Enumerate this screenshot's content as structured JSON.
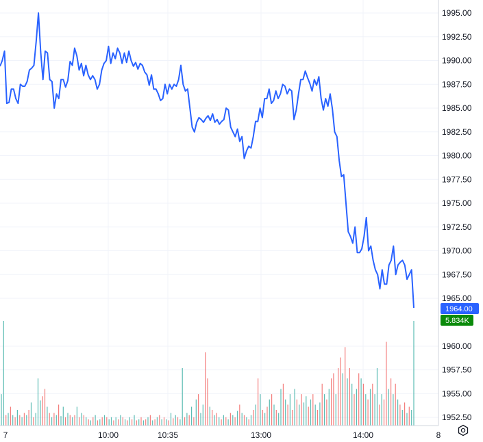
{
  "chart_data": {
    "type": "line",
    "title": "",
    "xlabel": "",
    "ylabel": "",
    "ylim": [
      1952.5,
      1995.0
    ],
    "grid": true,
    "y_ticks": [
      "1995.00",
      "1992.50",
      "1990.00",
      "1987.50",
      "1985.00",
      "1982.50",
      "1980.00",
      "1977.50",
      "1975.00",
      "1972.50",
      "1970.00",
      "1967.50",
      "1965.00",
      "1960.00",
      "1957.50",
      "1955.00",
      "1952.50"
    ],
    "x_ticks": [
      "7",
      "10:00",
      "10:35",
      "13:00",
      "14:00",
      "8"
    ],
    "last_price_label": "1964.00",
    "last_volume_label": "5.834K",
    "colors": {
      "line": "#2962ff",
      "price_badge": "#2962ff",
      "volume_badge": "#089981",
      "vol_up": "#26a69a",
      "vol_down": "#ef5350",
      "grid": "#f0f3fa"
    },
    "series": [
      {
        "values": [
          1989.4,
          1990.0,
          1991.0,
          1985.5,
          1985.6,
          1987.0,
          1987.0,
          1986.0,
          1985.5,
          1987.5,
          1987.3,
          1987.3,
          1987.8,
          1989.0,
          1989.2,
          1989.5,
          1992.0,
          1995.0,
          1990.9,
          1988.0,
          1991.0,
          1990.8,
          1988.0,
          1987.8,
          1985.0,
          1986.5,
          1986.0,
          1988.0,
          1988.0,
          1987.2,
          1987.9,
          1989.9,
          1989.5,
          1991.3,
          1990.5,
          1989.0,
          1989.7,
          1988.4,
          1989.5,
          1988.5,
          1988.0,
          1988.4,
          1988.0,
          1987.0,
          1987.5,
          1989.0,
          1989.7,
          1990.0,
          1991.5,
          1989.7,
          1990.8,
          1990.2,
          1991.3,
          1990.8,
          1989.7,
          1990.8,
          1989.8,
          1991.0,
          1990.0,
          1989.4,
          1989.8,
          1989.1,
          1989.7,
          1989.5,
          1988.8,
          1988.5,
          1987.4,
          1988.5,
          1987.0,
          1987.0,
          1986.5,
          1985.8,
          1986.0,
          1987.5,
          1986.5,
          1987.5,
          1987.0,
          1987.5,
          1987.3,
          1988.0,
          1989.5,
          1987.5,
          1986.8,
          1987.0,
          1985.0,
          1983.0,
          1982.5,
          1983.5,
          1984.0,
          1983.8,
          1983.5,
          1983.9,
          1984.2,
          1983.7,
          1984.4,
          1983.5,
          1983.8,
          1983.3,
          1983.6,
          1983.8,
          1985.0,
          1984.8,
          1983.0,
          1982.5,
          1982.0,
          1982.8,
          1981.5,
          1982.0,
          1979.7,
          1980.5,
          1981.0,
          1980.8,
          1982.0,
          1983.6,
          1983.6,
          1985.0,
          1984.0,
          1986.0,
          1986.0,
          1987.0,
          1985.5,
          1985.8,
          1986.8,
          1986.0,
          1986.5,
          1987.5,
          1987.3,
          1986.5,
          1987.0,
          1986.8,
          1983.8,
          1984.8,
          1986.5,
          1988.0,
          1988.0,
          1988.9,
          1988.2,
          1987.6,
          1986.8,
          1988.0,
          1987.4,
          1988.3,
          1986.0,
          1984.8,
          1986.0,
          1985.2,
          1986.5,
          1984.9,
          1982.5,
          1982.0,
          1979.5,
          1977.8,
          1978.0,
          1975.0,
          1972.0,
          1971.5,
          1970.8,
          1972.5,
          1969.8,
          1969.8,
          1970.2,
          1971.5,
          1973.5,
          1970.0,
          1970.5,
          1969.0,
          1968.0,
          1967.5,
          1966.0,
          1968.0,
          1966.5,
          1966.5,
          1968.5,
          1969.0,
          1970.5,
          1967.5,
          1968.5,
          1968.8,
          1969.0,
          1968.5,
          1967.0,
          1967.5,
          1968.0,
          1964.0
        ]
      }
    ],
    "volume": [
      {
        "v": 0.3,
        "u": true
      },
      {
        "v": 1.0,
        "u": true
      },
      {
        "v": 0.1,
        "u": false
      },
      {
        "v": 0.12,
        "u": true
      },
      {
        "v": 0.18,
        "u": false
      },
      {
        "v": 0.1,
        "u": true
      },
      {
        "v": 0.08,
        "u": false
      },
      {
        "v": 0.15,
        "u": true
      },
      {
        "v": 0.1,
        "u": false
      },
      {
        "v": 0.08,
        "u": true
      },
      {
        "v": 0.12,
        "u": false
      },
      {
        "v": 0.1,
        "u": true
      },
      {
        "v": 0.15,
        "u": false
      },
      {
        "v": 0.22,
        "u": true
      },
      {
        "v": 0.08,
        "u": false
      },
      {
        "v": 0.12,
        "u": true
      },
      {
        "v": 0.45,
        "u": true
      },
      {
        "v": 0.24,
        "u": true
      },
      {
        "v": 0.28,
        "u": false
      },
      {
        "v": 0.35,
        "u": false
      },
      {
        "v": 0.18,
        "u": true
      },
      {
        "v": 0.12,
        "u": false
      },
      {
        "v": 0.08,
        "u": true
      },
      {
        "v": 0.12,
        "u": false
      },
      {
        "v": 0.1,
        "u": true
      },
      {
        "v": 0.2,
        "u": false
      },
      {
        "v": 0.09,
        "u": true
      },
      {
        "v": 0.18,
        "u": true
      },
      {
        "v": 0.08,
        "u": false
      },
      {
        "v": 0.12,
        "u": true
      },
      {
        "v": 0.1,
        "u": false
      },
      {
        "v": 0.08,
        "u": true
      },
      {
        "v": 0.1,
        "u": false
      },
      {
        "v": 0.18,
        "u": true
      },
      {
        "v": 0.08,
        "u": false
      },
      {
        "v": 0.12,
        "u": true
      },
      {
        "v": 0.1,
        "u": false
      },
      {
        "v": 0.08,
        "u": true
      },
      {
        "v": 0.06,
        "u": false
      },
      {
        "v": 0.05,
        "u": true
      },
      {
        "v": 0.08,
        "u": false
      },
      {
        "v": 0.1,
        "u": true
      },
      {
        "v": 0.05,
        "u": false
      },
      {
        "v": 0.06,
        "u": true
      },
      {
        "v": 0.08,
        "u": false
      },
      {
        "v": 0.1,
        "u": true
      },
      {
        "v": 0.08,
        "u": false
      },
      {
        "v": 0.06,
        "u": true
      },
      {
        "v": 0.08,
        "u": true
      },
      {
        "v": 0.05,
        "u": false
      },
      {
        "v": 0.08,
        "u": true
      },
      {
        "v": 0.06,
        "u": false
      },
      {
        "v": 0.1,
        "u": true
      },
      {
        "v": 0.08,
        "u": false
      },
      {
        "v": 0.06,
        "u": true
      },
      {
        "v": 0.05,
        "u": false
      },
      {
        "v": 0.08,
        "u": true
      },
      {
        "v": 0.06,
        "u": false
      },
      {
        "v": 0.1,
        "u": true
      },
      {
        "v": 0.05,
        "u": false
      },
      {
        "v": 0.06,
        "u": true
      },
      {
        "v": 0.08,
        "u": false
      },
      {
        "v": 0.05,
        "u": true
      },
      {
        "v": 0.06,
        "u": false
      },
      {
        "v": 0.08,
        "u": true
      },
      {
        "v": 0.1,
        "u": false
      },
      {
        "v": 0.05,
        "u": true
      },
      {
        "v": 0.06,
        "u": false
      },
      {
        "v": 0.08,
        "u": true
      },
      {
        "v": 0.1,
        "u": false
      },
      {
        "v": 0.06,
        "u": true
      },
      {
        "v": 0.08,
        "u": false
      },
      {
        "v": 0.06,
        "u": true
      },
      {
        "v": 0.05,
        "u": false
      },
      {
        "v": 0.12,
        "u": true
      },
      {
        "v": 0.07,
        "u": false
      },
      {
        "v": 0.1,
        "u": true
      },
      {
        "v": 0.08,
        "u": false
      },
      {
        "v": 0.06,
        "u": true
      },
      {
        "v": 0.55,
        "u": true
      },
      {
        "v": 0.08,
        "u": false
      },
      {
        "v": 0.12,
        "u": true
      },
      {
        "v": 0.1,
        "u": false
      },
      {
        "v": 0.18,
        "u": true
      },
      {
        "v": 0.08,
        "u": false
      },
      {
        "v": 0.25,
        "u": true
      },
      {
        "v": 0.3,
        "u": false
      },
      {
        "v": 0.12,
        "u": true
      },
      {
        "v": 0.2,
        "u": true
      },
      {
        "v": 0.7,
        "u": false
      },
      {
        "v": 0.45,
        "u": false
      },
      {
        "v": 0.18,
        "u": true
      },
      {
        "v": 0.15,
        "u": false
      },
      {
        "v": 0.1,
        "u": true
      },
      {
        "v": 0.12,
        "u": false
      },
      {
        "v": 0.08,
        "u": true
      },
      {
        "v": 0.06,
        "u": false
      },
      {
        "v": 0.1,
        "u": true
      },
      {
        "v": 0.08,
        "u": false
      },
      {
        "v": 0.06,
        "u": true
      },
      {
        "v": 0.12,
        "u": false
      },
      {
        "v": 0.1,
        "u": true
      },
      {
        "v": 0.08,
        "u": false
      },
      {
        "v": 0.14,
        "u": true
      },
      {
        "v": 0.2,
        "u": false
      },
      {
        "v": 0.12,
        "u": true
      },
      {
        "v": 0.1,
        "u": false
      },
      {
        "v": 0.08,
        "u": true
      },
      {
        "v": 0.06,
        "u": false
      },
      {
        "v": 0.1,
        "u": true
      },
      {
        "v": 0.15,
        "u": false
      },
      {
        "v": 0.2,
        "u": true
      },
      {
        "v": 0.45,
        "u": false
      },
      {
        "v": 0.3,
        "u": true
      },
      {
        "v": 0.15,
        "u": false
      },
      {
        "v": 0.12,
        "u": true
      },
      {
        "v": 0.18,
        "u": false
      },
      {
        "v": 0.25,
        "u": true
      },
      {
        "v": 0.3,
        "u": false
      },
      {
        "v": 0.2,
        "u": true
      },
      {
        "v": 0.15,
        "u": false
      },
      {
        "v": 0.12,
        "u": true
      },
      {
        "v": 0.35,
        "u": true
      },
      {
        "v": 0.4,
        "u": false
      },
      {
        "v": 0.25,
        "u": true
      },
      {
        "v": 0.2,
        "u": false
      },
      {
        "v": 0.3,
        "u": true
      },
      {
        "v": 0.15,
        "u": false
      },
      {
        "v": 0.35,
        "u": true
      },
      {
        "v": 0.25,
        "u": false
      },
      {
        "v": 0.2,
        "u": true
      },
      {
        "v": 0.3,
        "u": false
      },
      {
        "v": 0.22,
        "u": true
      },
      {
        "v": 0.28,
        "u": true
      },
      {
        "v": 0.18,
        "u": false
      },
      {
        "v": 0.25,
        "u": true
      },
      {
        "v": 0.3,
        "u": false
      },
      {
        "v": 0.2,
        "u": true
      },
      {
        "v": 0.15,
        "u": false
      },
      {
        "v": 0.22,
        "u": true
      },
      {
        "v": 0.4,
        "u": false
      },
      {
        "v": 0.3,
        "u": true
      },
      {
        "v": 0.25,
        "u": false
      },
      {
        "v": 0.35,
        "u": true
      },
      {
        "v": 0.45,
        "u": false
      },
      {
        "v": 0.5,
        "u": false
      },
      {
        "v": 0.3,
        "u": true
      },
      {
        "v": 0.55,
        "u": false
      },
      {
        "v": 0.65,
        "u": false
      },
      {
        "v": 0.5,
        "u": true
      },
      {
        "v": 0.75,
        "u": false
      },
      {
        "v": 0.45,
        "u": true
      },
      {
        "v": 0.55,
        "u": false
      },
      {
        "v": 0.4,
        "u": true
      },
      {
        "v": 0.3,
        "u": false
      },
      {
        "v": 0.35,
        "u": true
      },
      {
        "v": 0.5,
        "u": false
      },
      {
        "v": 0.45,
        "u": true
      },
      {
        "v": 0.4,
        "u": false
      },
      {
        "v": 0.3,
        "u": true
      },
      {
        "v": 0.25,
        "u": false
      },
      {
        "v": 0.35,
        "u": true
      },
      {
        "v": 0.4,
        "u": false
      },
      {
        "v": 0.3,
        "u": true
      },
      {
        "v": 0.55,
        "u": true
      },
      {
        "v": 0.2,
        "u": false
      },
      {
        "v": 0.3,
        "u": true
      },
      {
        "v": 0.25,
        "u": false
      },
      {
        "v": 0.8,
        "u": false
      },
      {
        "v": 0.35,
        "u": true
      },
      {
        "v": 0.45,
        "u": false
      },
      {
        "v": 0.3,
        "u": true
      },
      {
        "v": 0.4,
        "u": false
      },
      {
        "v": 0.25,
        "u": true
      },
      {
        "v": 0.2,
        "u": false
      },
      {
        "v": 0.15,
        "u": true
      },
      {
        "v": 0.22,
        "u": false
      },
      {
        "v": 0.12,
        "u": true
      },
      {
        "v": 0.18,
        "u": false
      },
      {
        "v": 0.15,
        "u": true
      },
      {
        "v": 1.0,
        "u": true
      }
    ]
  }
}
